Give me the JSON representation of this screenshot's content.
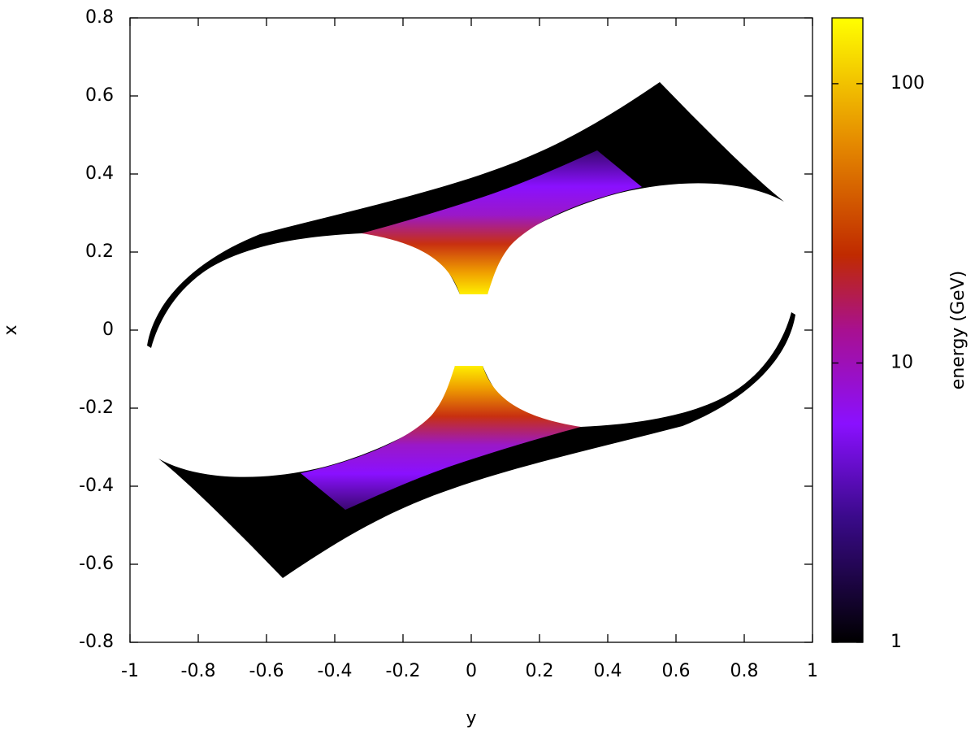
{
  "chart_data": {
    "type": "heatmap",
    "xlabel": "y",
    "ylabel": "x",
    "colorbar_label": "energy (GeV)",
    "xlim": [
      -1,
      1
    ],
    "xticks": [
      -1,
      -0.8,
      -0.6,
      -0.4,
      -0.2,
      0,
      0.2,
      0.4,
      0.6,
      0.8,
      1
    ],
    "ylim": [
      -0.8,
      0.8
    ],
    "yticks": [
      -0.8,
      -0.6,
      -0.4,
      -0.2,
      0,
      0.2,
      0.4,
      0.6,
      0.8
    ],
    "clim": [
      1,
      172
    ],
    "cticks": [
      1,
      10,
      100
    ],
    "clog": true
  }
}
